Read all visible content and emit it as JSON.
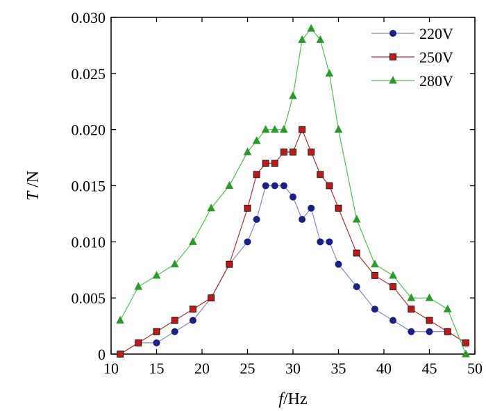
{
  "chart_data": {
    "type": "line",
    "title": "",
    "xlabel": {
      "var": "f",
      "unit": "/Hz"
    },
    "ylabel": {
      "var": "T",
      "unit": " /N"
    },
    "xlim": [
      10,
      50
    ],
    "ylim": [
      0,
      0.03
    ],
    "xticks": [
      "10",
      "15",
      "20",
      "25",
      "30",
      "35",
      "40",
      "45",
      "50"
    ],
    "yticks": [
      "0",
      "0.005",
      "0.010",
      "0.015",
      "0.020",
      "0.025",
      "0.030"
    ],
    "grid": false,
    "legend_position": "top-right",
    "series": [
      {
        "name": "220V",
        "line_color": "#7f86c8",
        "marker_color": "#1a1f8c",
        "marker": "circle",
        "x": [
          11,
          13,
          15,
          17,
          19,
          21,
          23,
          25,
          26,
          27,
          28,
          29,
          30,
          31,
          32,
          33,
          34,
          35,
          37,
          39,
          41,
          43,
          45,
          47,
          49
        ],
        "y": [
          0,
          0.001,
          0.001,
          0.002,
          0.003,
          0.005,
          0.008,
          0.01,
          0.012,
          0.015,
          0.015,
          0.015,
          0.014,
          0.012,
          0.013,
          0.01,
          0.01,
          0.008,
          0.006,
          0.004,
          0.003,
          0.002,
          0.002,
          0.002,
          0.001
        ]
      },
      {
        "name": "250V",
        "line_color": "#b03030",
        "marker_color": "#c01818",
        "marker": "square",
        "x": [
          11,
          13,
          15,
          17,
          19,
          21,
          23,
          25,
          26,
          27,
          28,
          29,
          30,
          31,
          32,
          33,
          34,
          35,
          37,
          39,
          41,
          43,
          45,
          47,
          49
        ],
        "y": [
          0,
          0.001,
          0.002,
          0.003,
          0.004,
          0.005,
          0.008,
          0.013,
          0.016,
          0.017,
          0.017,
          0.018,
          0.018,
          0.02,
          0.018,
          0.016,
          0.015,
          0.013,
          0.009,
          0.007,
          0.006,
          0.004,
          0.003,
          0.002,
          0.001
        ]
      },
      {
        "name": "280V",
        "line_color": "#4cc24c",
        "marker_color": "#2a9a2a",
        "marker": "triangle",
        "x": [
          11,
          13,
          15,
          17,
          19,
          21,
          23,
          25,
          26,
          27,
          28,
          29,
          30,
          31,
          32,
          33,
          34,
          35,
          37,
          39,
          41,
          43,
          45,
          47,
          49
        ],
        "y": [
          0.003,
          0.006,
          0.007,
          0.008,
          0.01,
          0.013,
          0.015,
          0.018,
          0.019,
          0.02,
          0.02,
          0.02,
          0.023,
          0.028,
          0.029,
          0.028,
          0.025,
          0.02,
          0.012,
          0.008,
          0.007,
          0.005,
          0.005,
          0.004,
          0
        ]
      }
    ]
  }
}
